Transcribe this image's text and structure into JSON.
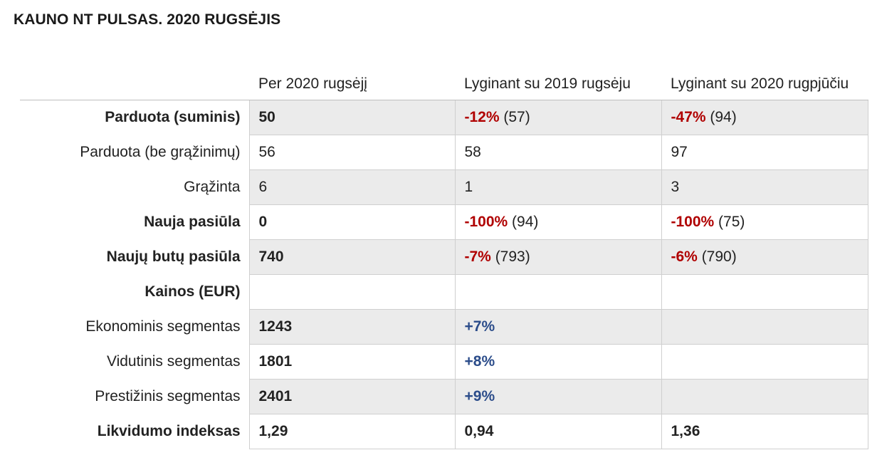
{
  "title": "KAUNO NT PULSAS. 2020 RUGSĖJIS",
  "headers": [
    "",
    "Per 2020 rugsėjį",
    "Lyginant su 2019 rugsėju",
    "Lyginant su 2020 rugpjūčiu"
  ],
  "rows": [
    {
      "label": "Parduota (suminis)",
      "bold_label": true,
      "shaded": true,
      "c1": {
        "value": "50",
        "bold": true
      },
      "c2": {
        "change": "-12%",
        "dir": "neg",
        "rest": " (57)"
      },
      "c3": {
        "change": "-47%",
        "dir": "neg",
        "rest": " (94)"
      }
    },
    {
      "label": "Parduota (be grąžinimų)",
      "bold_label": false,
      "shaded": false,
      "c1": {
        "value": "56"
      },
      "c2": {
        "value": "58"
      },
      "c3": {
        "value": "97"
      }
    },
    {
      "label": "Grąžinta",
      "bold_label": false,
      "shaded": true,
      "c1": {
        "value": "6"
      },
      "c2": {
        "value": "1"
      },
      "c3": {
        "value": "3"
      }
    },
    {
      "label": "Nauja pasiūla",
      "bold_label": true,
      "shaded": false,
      "c1": {
        "value": "0",
        "bold": true
      },
      "c2": {
        "change": "-100%",
        "dir": "neg",
        "rest": " (94)"
      },
      "c3": {
        "change": "-100%",
        "dir": "neg",
        "rest": " (75)"
      }
    },
    {
      "label": "Naujų butų pasiūla",
      "bold_label": true,
      "shaded": true,
      "c1": {
        "value": "740",
        "bold": true
      },
      "c2": {
        "change": "-7%",
        "dir": "neg",
        "rest": " (793)"
      },
      "c3": {
        "change": "-6%",
        "dir": "neg",
        "rest": " (790)"
      }
    },
    {
      "label": "Kainos (EUR)",
      "bold_label": true,
      "shaded": false,
      "c1": {
        "value": ""
      },
      "c2": {
        "value": ""
      },
      "c3": {
        "value": ""
      }
    },
    {
      "label": "Ekonominis segmentas",
      "bold_label": false,
      "shaded": true,
      "c1": {
        "value": "1243",
        "bold": true
      },
      "c2": {
        "change": "+7%",
        "dir": "pos",
        "rest": ""
      },
      "c3": {
        "value": ""
      }
    },
    {
      "label": "Vidutinis segmentas",
      "bold_label": false,
      "shaded": false,
      "c1": {
        "value": "1801",
        "bold": true
      },
      "c2": {
        "change": "+8%",
        "dir": "pos",
        "rest": ""
      },
      "c3": {
        "value": ""
      }
    },
    {
      "label": "Prestižinis segmentas",
      "bold_label": false,
      "shaded": true,
      "c1": {
        "value": "2401",
        "bold": true
      },
      "c2": {
        "change": "+9%",
        "dir": "pos",
        "rest": ""
      },
      "c3": {
        "value": ""
      }
    },
    {
      "label": "Likvidumo indeksas",
      "bold_label": true,
      "shaded": false,
      "c1": {
        "value": "1,29",
        "bold": true
      },
      "c2": {
        "value": "0,94",
        "bold": true
      },
      "c3": {
        "value": "1,36",
        "bold": true
      }
    }
  ],
  "colors": {
    "negative": "#b00000",
    "positive": "#2b4c8a",
    "shade": "#ebebeb"
  }
}
